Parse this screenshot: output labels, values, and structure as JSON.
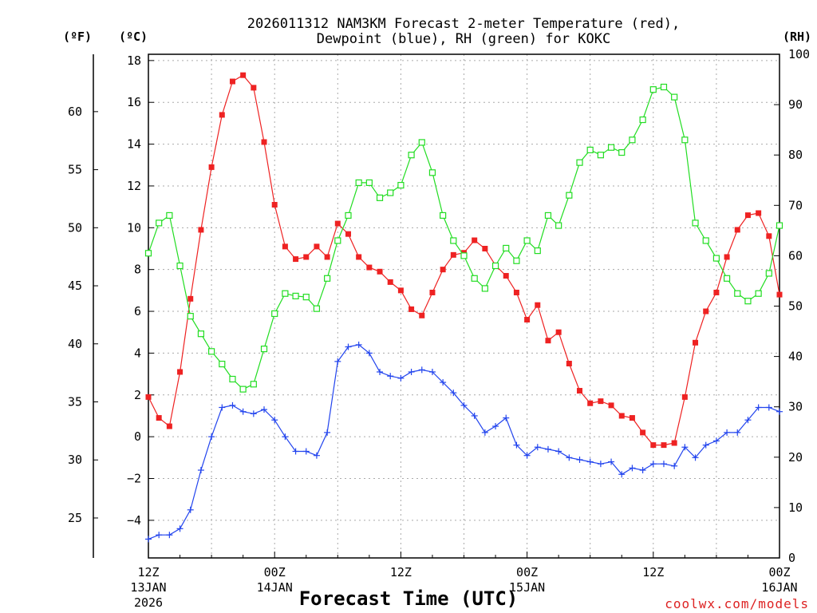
{
  "chart_data": {
    "type": "line",
    "title_line1": "2026011312 NAM3KM Forecast 2-meter Temperature (red),",
    "title_line2": "Dewpoint (blue), RH (green) for KOKC",
    "xlabel": "Forecast Time (UTC)",
    "watermark": "coolwx.com/models",
    "units": {
      "fahrenheit": "(ºF)",
      "celsius": "(ºC)",
      "rh": "(RH)"
    },
    "x_range_hours": [
      0,
      60
    ],
    "y_left_c": {
      "range": [
        -5.8,
        18.3
      ],
      "ticks": [
        -4,
        -2,
        0,
        2,
        4,
        6,
        8,
        10,
        12,
        14,
        16,
        18
      ]
    },
    "y_left_f": {
      "ticks": [
        25,
        30,
        35,
        40,
        45,
        50,
        55,
        60
      ]
    },
    "y_right_rh": {
      "range": [
        0,
        100
      ],
      "ticks": [
        0,
        10,
        20,
        30,
        40,
        50,
        60,
        70,
        80,
        90,
        100
      ]
    },
    "x_ticks": [
      {
        "hour": 0,
        "time": "12Z",
        "date": "13JAN",
        "year": "2026"
      },
      {
        "hour": 12,
        "time": "00Z",
        "date": "14JAN",
        "year": ""
      },
      {
        "hour": 24,
        "time": "12Z",
        "date": "",
        "year": ""
      },
      {
        "hour": 36,
        "time": "00Z",
        "date": "15JAN",
        "year": ""
      },
      {
        "hour": 48,
        "time": "12Z",
        "date": "",
        "year": ""
      },
      {
        "hour": 60,
        "time": "00Z",
        "date": "16JAN",
        "year": ""
      }
    ],
    "series": [
      {
        "name": "Temperature",
        "color": "#ee2222",
        "unit": "C",
        "marker": "filled-square",
        "x": [
          0,
          1,
          2,
          3,
          4,
          5,
          6,
          7,
          8,
          9,
          10,
          11,
          12,
          13,
          14,
          15,
          16,
          17,
          18,
          19,
          20,
          21,
          22,
          23,
          24,
          25,
          26,
          27,
          28,
          29,
          30,
          31,
          32,
          33,
          34,
          35,
          36,
          37,
          38,
          39,
          40,
          41,
          42,
          43,
          44,
          45,
          46,
          47,
          48,
          49,
          50,
          51,
          52,
          53,
          54,
          55,
          56,
          57,
          58,
          59,
          60
        ],
        "values": [
          1.9,
          0.9,
          0.5,
          3.1,
          6.6,
          9.9,
          12.9,
          15.4,
          17.0,
          17.3,
          16.7,
          14.1,
          11.1,
          9.1,
          8.5,
          8.6,
          9.1,
          8.6,
          10.2,
          9.7,
          8.6,
          8.1,
          7.9,
          7.4,
          7.0,
          6.1,
          5.8,
          6.9,
          8.0,
          8.7,
          8.8,
          9.4,
          9.0,
          8.2,
          7.7,
          6.9,
          5.6,
          6.3,
          4.6,
          5.0,
          3.5,
          2.2,
          1.6,
          1.7,
          1.5,
          1.0,
          0.9,
          0.2,
          -0.4,
          -0.4,
          -0.3,
          1.9,
          4.5,
          6.0,
          6.9,
          8.6,
          9.9,
          10.6,
          10.7,
          9.6,
          6.8
        ]
      },
      {
        "name": "Dewpoint",
        "color": "#2244ee",
        "unit": "C",
        "marker": "plus",
        "x": [
          0,
          1,
          2,
          3,
          4,
          5,
          6,
          7,
          8,
          9,
          10,
          11,
          12,
          13,
          14,
          15,
          16,
          17,
          18,
          19,
          20,
          21,
          22,
          23,
          24,
          25,
          26,
          27,
          28,
          29,
          30,
          31,
          32,
          33,
          34,
          35,
          36,
          37,
          38,
          39,
          40,
          41,
          42,
          43,
          44,
          45,
          46,
          47,
          48,
          49,
          50,
          51,
          52,
          53,
          54,
          55,
          56,
          57,
          58,
          59,
          60
        ],
        "values": [
          -4.9,
          -4.7,
          -4.7,
          -4.4,
          -3.5,
          -1.6,
          0.0,
          1.4,
          1.5,
          1.2,
          1.1,
          1.3,
          0.8,
          0.0,
          -0.7,
          -0.7,
          -0.9,
          0.2,
          3.6,
          4.3,
          4.4,
          4.0,
          3.1,
          2.9,
          2.8,
          3.1,
          3.2,
          3.1,
          2.6,
          2.1,
          1.5,
          1.0,
          0.2,
          0.5,
          0.9,
          -0.4,
          -0.9,
          -0.5,
          -0.6,
          -0.7,
          -1.0,
          -1.1,
          -1.2,
          -1.3,
          -1.2,
          -1.8,
          -1.5,
          -1.6,
          -1.3,
          -1.3,
          -1.4,
          -0.5,
          -1.0,
          -0.4,
          -0.2,
          0.2,
          0.2,
          0.8,
          1.4,
          1.4,
          1.2
        ]
      },
      {
        "name": "RH",
        "color": "#22dd22",
        "unit": "%",
        "marker": "open-square",
        "x": [
          0,
          1,
          2,
          3,
          4,
          5,
          6,
          7,
          8,
          9,
          10,
          11,
          12,
          13,
          14,
          15,
          16,
          17,
          18,
          19,
          20,
          21,
          22,
          23,
          24,
          25,
          26,
          27,
          28,
          29,
          30,
          31,
          32,
          33,
          34,
          35,
          36,
          37,
          38,
          39,
          40,
          41,
          42,
          43,
          44,
          45,
          46,
          47,
          48,
          49,
          50,
          51,
          52,
          53,
          54,
          55,
          56,
          57,
          58,
          59,
          60
        ],
        "values": [
          60.5,
          66.5,
          68.0,
          58.0,
          48.0,
          44.5,
          41.0,
          38.5,
          35.5,
          33.5,
          34.5,
          41.5,
          48.5,
          52.5,
          52.0,
          51.8,
          49.5,
          55.5,
          63.0,
          68.0,
          74.5,
          74.5,
          71.5,
          72.5,
          74.0,
          80.0,
          82.5,
          76.5,
          68.0,
          63.0,
          60.0,
          55.5,
          53.5,
          58.0,
          61.5,
          59.0,
          63.0,
          61.0,
          68.0,
          66.0,
          72.0,
          78.5,
          81.0,
          80.0,
          81.5,
          80.5,
          83.0,
          87.0,
          93.0,
          93.5,
          91.5,
          83.0,
          66.5,
          63.0,
          59.5,
          55.5,
          52.5,
          51.0,
          52.5,
          56.5,
          66.0
        ]
      }
    ]
  }
}
